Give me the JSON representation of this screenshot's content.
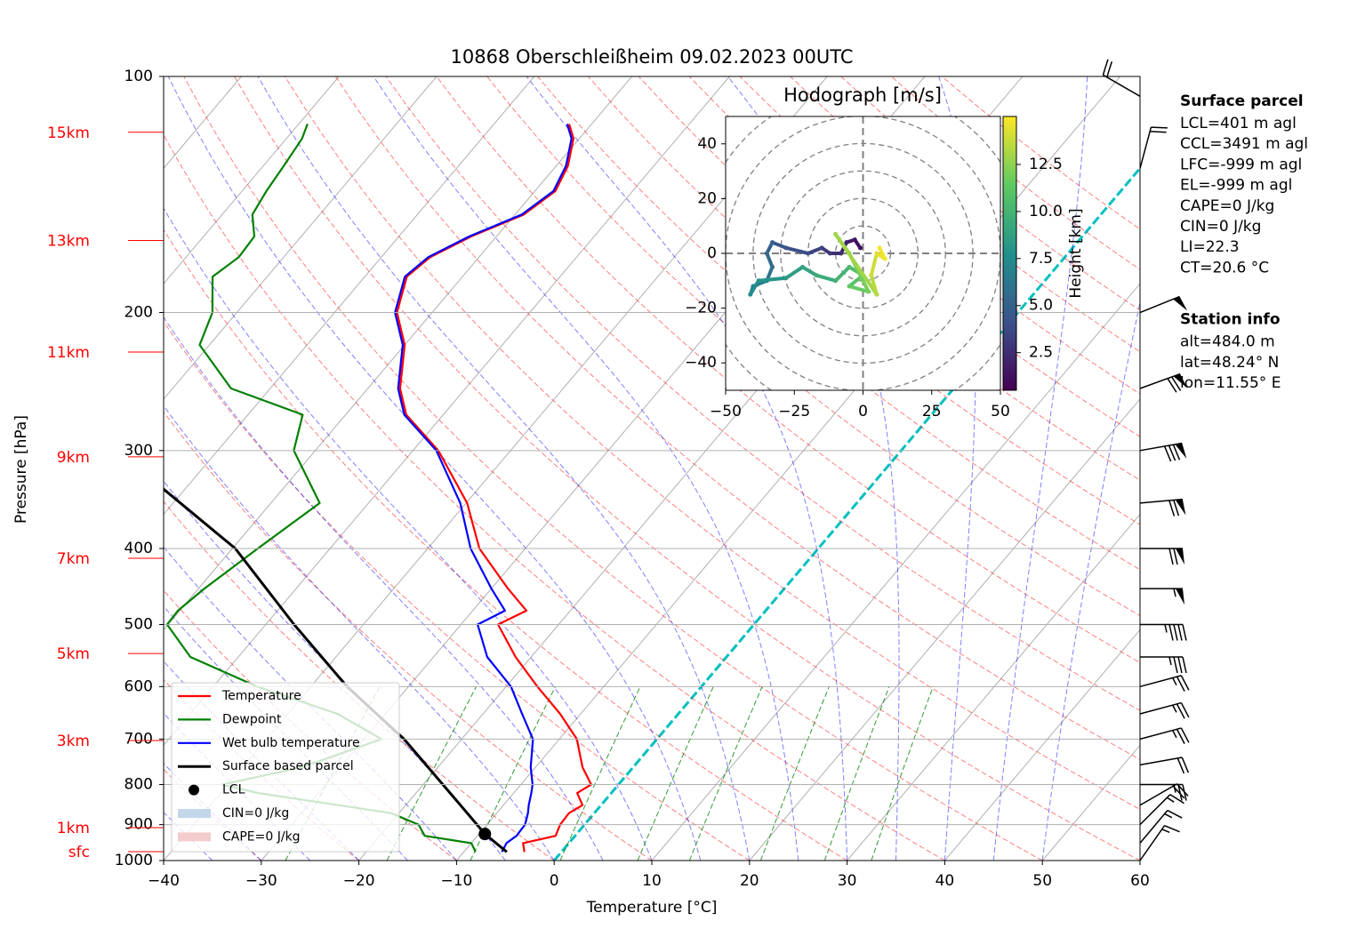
{
  "chart_data": {
    "type": "skewt",
    "title": "10868 Oberschleißheim 09.02.2023 00UTC",
    "xlabel": "Temperature [°C]",
    "ylabel": "Pressure [hPa]",
    "xlim": [
      -40,
      60
    ],
    "ylim": [
      1000,
      100
    ],
    "log_y": true,
    "grid": true,
    "xticks": [
      {
        "value": -40,
        "label": "−40"
      },
      {
        "value": -30,
        "label": "−30"
      },
      {
        "value": -20,
        "label": "−20"
      },
      {
        "value": -10,
        "label": "−10"
      },
      0,
      10,
      20,
      30,
      40,
      50,
      60
    ],
    "yticks": [
      100,
      200,
      300,
      400,
      500,
      600,
      700,
      800,
      900,
      1000
    ],
    "pressure": [
      975,
      950,
      930,
      900,
      870,
      850,
      820,
      800,
      760,
      700,
      650,
      600,
      550,
      500,
      480,
      450,
      400,
      350,
      300,
      270,
      250,
      220,
      200,
      180,
      170,
      160,
      150,
      140,
      130,
      120,
      115
    ],
    "series": [
      {
        "name": "Temperature",
        "color": "#ff0000",
        "values": [
          -3.8,
          -4.7,
          -2.0,
          -2.5,
          -2.6,
          -1.9,
          -3.5,
          -2.8,
          -5.2,
          -8.2,
          -12.1,
          -16.8,
          -21.6,
          -26.2,
          -24.5,
          -28.3,
          -34.7,
          -39.9,
          -47.4,
          -53.8,
          -56.7,
          -60.0,
          -63.6,
          -65.7,
          -65.0,
          -62.6,
          -59.1,
          -57.9,
          -58.8,
          -60.6,
          -62.3
        ]
      },
      {
        "name": "Dewpoint",
        "color": "#008000",
        "values": [
          -8.8,
          -10.0,
          -15.4,
          -17.0,
          -20.8,
          -26.9,
          -36.2,
          -40.6,
          -33.9,
          -28.2,
          -34.9,
          -45.5,
          -54.9,
          -60.1,
          -60.2,
          -59.4,
          -57.4,
          -55.0,
          -62.2,
          -64.4,
          -74.0,
          -81.0,
          -82.5,
          -85.6,
          -84.6,
          -84.8,
          -86.9,
          -87.5,
          -87.9,
          -88.4,
          -89.1
        ]
      },
      {
        "name": "Wet bulb temperature",
        "color": "#0000ff",
        "values": [
          -6.1,
          -6.4,
          -6.0,
          -6.1,
          -6.8,
          -7.4,
          -8.2,
          -8.8,
          -10.5,
          -12.7,
          -16.0,
          -19.5,
          -24.5,
          -28.3,
          -26.7,
          -30.0,
          -35.6,
          -40.6,
          -47.6,
          -54.0,
          -56.9,
          -60.2,
          -63.8,
          -65.9,
          -65.2,
          -62.8,
          -59.3,
          -58.1,
          -59.0,
          -60.8,
          -62.5
        ]
      }
    ],
    "parcel": {
      "name": "Surface based parcel",
      "color": "#000000",
      "pressure": [
        975,
        925,
        850,
        700,
        600,
        500,
        400,
        335
      ],
      "values": [
        -5.6,
        -9.4,
        -14.4,
        -25.9,
        -36.3,
        -47.1,
        -59.7,
        -72.4
      ]
    },
    "lcl": {
      "name": "LCL",
      "color": "#000000",
      "pressure": 925,
      "value": -9.4
    },
    "cin": {
      "label": "CIN=0 J/kg",
      "color": "#c3d7ea"
    },
    "cape": {
      "label": "CAPE=0 J/kg",
      "color": "#f4cccc"
    },
    "height_labels": [
      {
        "label": "15km",
        "pressure": 117.8
      },
      {
        "label": "13km",
        "pressure": 161.9
      },
      {
        "label": "11km",
        "pressure": 224.6
      },
      {
        "label": "9km",
        "pressure": 305.6
      },
      {
        "label": "7km",
        "pressure": 411.6
      },
      {
        "label": "5km",
        "pressure": 544.4
      },
      {
        "label": "3km",
        "pressure": 703.0
      },
      {
        "label": "1km",
        "pressure": 908.0
      },
      {
        "label": "sfc",
        "pressure": 974.2
      }
    ],
    "wind": {
      "pressure": [
        106,
        131,
        200,
        250,
        300,
        350,
        400,
        450,
        500,
        550,
        600,
        650,
        700,
        755,
        800,
        850,
        900,
        950,
        1000
      ],
      "speed": [
        20,
        20,
        50,
        70,
        80,
        70,
        70,
        55,
        45,
        35,
        25,
        25,
        25,
        20,
        25,
        20,
        15,
        15,
        15
      ],
      "direction": [
        300,
        15,
        68,
        70,
        80,
        85,
        90,
        90,
        90,
        90,
        75,
        75,
        75,
        80,
        90,
        60,
        45,
        40,
        35
      ]
    },
    "hodograph": {
      "title": "Hodograph [m/s]",
      "xlim": [
        -50,
        50
      ],
      "ylim": [
        -50,
        50
      ],
      "xticks": [
        {
          "value": -50,
          "label": "−50"
        },
        {
          "value": -25,
          "label": "−25"
        },
        0,
        25,
        50
      ],
      "yticks": [
        {
          "value": -40,
          "label": "−40"
        },
        {
          "value": -20,
          "label": "−20"
        },
        0,
        20,
        40
      ],
      "u": [
        -1,
        -3,
        -6,
        -8,
        -12,
        -15,
        -20,
        -28,
        -33,
        -35,
        -33,
        -35,
        -40,
        -41,
        -38,
        -28,
        -22,
        -17,
        -10,
        -5,
        0,
        -5,
        2,
        -5,
        -10,
        5,
        3,
        5,
        8,
        6
      ],
      "v": [
        2,
        5,
        4,
        0,
        0,
        2,
        0,
        2,
        4,
        0,
        -5,
        -10,
        -12,
        -15,
        -10,
        -9,
        -5,
        -8,
        -10,
        -5,
        -8,
        -12,
        -14,
        0,
        7,
        -15,
        -8,
        0,
        -2,
        2
      ],
      "height": [
        0.5,
        1.0,
        1.5,
        2.0,
        2.5,
        3.0,
        3.5,
        4.0,
        4.5,
        5.0,
        5.5,
        6.0,
        6.5,
        7.0,
        7.5,
        8.0,
        8.5,
        9.0,
        9.5,
        10.0,
        10.5,
        11.0,
        11.5,
        12.0,
        12.5,
        13.0,
        13.5,
        14.0,
        14.5,
        14.8
      ],
      "colorbar_label": "Height [km]",
      "clim": [
        0.5,
        15.05
      ],
      "cticks": [
        2.5,
        {
          "value": 5,
          "label": "5.0"
        },
        7.5,
        {
          "value": 10,
          "label": "10.0"
        },
        12.5
      ]
    },
    "info": [
      {
        "title": "Surface parcel",
        "lines": [
          "LCL=401 m agl",
          "CCL=3491 m agl",
          "LFC=-999 m agl",
          "EL=-999 m agl",
          "CAPE=0 J/kg",
          "CIN=0 J/kg",
          "LI=22.3",
          "CT=20.6 °C"
        ]
      },
      {
        "title": "Station info",
        "lines": [
          "alt=484.0 m",
          "lat=48.24° N",
          "lon=11.55° E"
        ]
      }
    ]
  }
}
